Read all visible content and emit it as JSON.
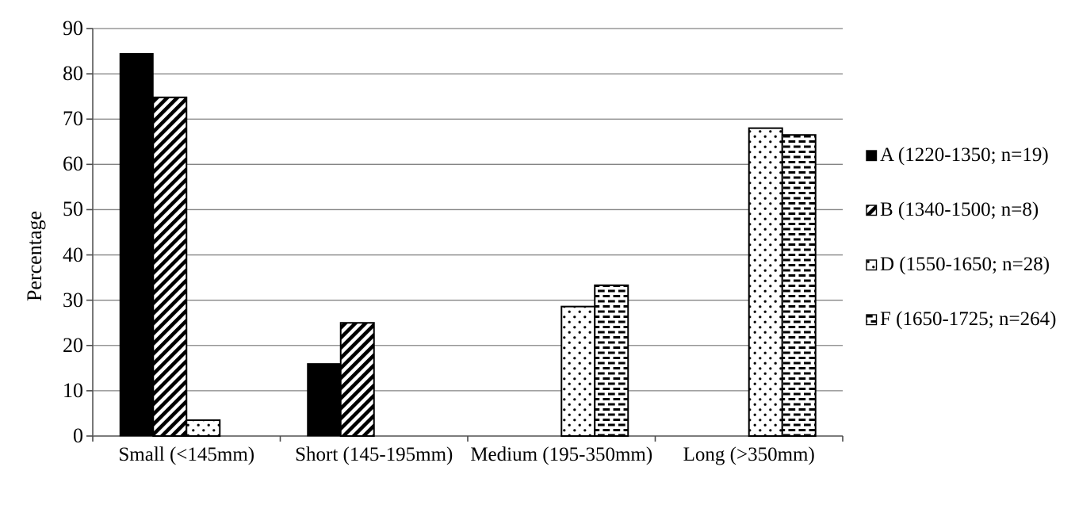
{
  "chart_data": {
    "type": "bar",
    "title": "",
    "xlabel": "",
    "ylabel": "Percentage",
    "ylim": [
      0,
      90
    ],
    "yticks": [
      0,
      10,
      20,
      30,
      40,
      50,
      60,
      70,
      80,
      90
    ],
    "grid": true,
    "legend_position": "right",
    "categories": [
      "Small (<145mm)",
      "Short (145-195mm)",
      "Medium (195-350mm)",
      "Long (>350mm)"
    ],
    "series": [
      {
        "name": "A (1220-1350; n=19)",
        "pattern": "solid",
        "values": [
          84.5,
          16,
          0,
          0
        ]
      },
      {
        "name": "B (1340-1500; n=8)",
        "pattern": "diagonal-hatch",
        "values": [
          74.8,
          25,
          0,
          0
        ]
      },
      {
        "name": "D (1550-1650; n=28)",
        "pattern": "dots",
        "values": [
          3.5,
          0,
          28.6,
          68
        ]
      },
      {
        "name": "F (1650-1725; n=264)",
        "pattern": "horizontal-dashes",
        "values": [
          0,
          0,
          33.3,
          66.5
        ]
      }
    ],
    "colors": {
      "foreground": "#000000",
      "background": "#ffffff",
      "gridline": "#848484",
      "axis": "#6a6a6a",
      "tick": "#4a4a4a"
    }
  }
}
